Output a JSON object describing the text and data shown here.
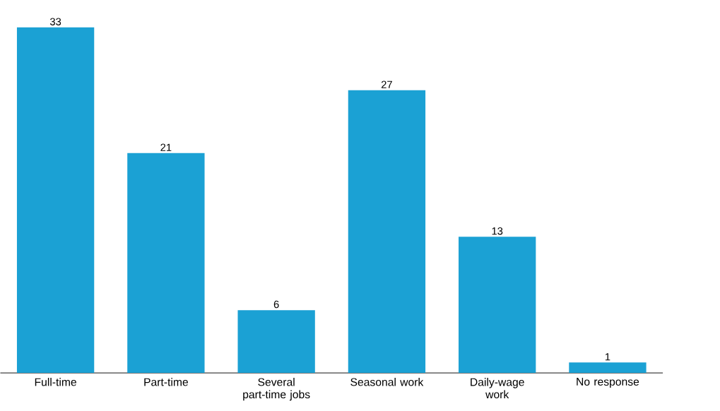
{
  "chart_data": {
    "type": "bar",
    "categories": [
      "Full-time",
      "Part-time",
      "Several part-time jobs",
      "Seasonal work",
      "Daily-wage work",
      "No response"
    ],
    "values": [
      33,
      21,
      6,
      27,
      13,
      1
    ],
    "color": "#1ba1d4",
    "data_labels": true
  }
}
